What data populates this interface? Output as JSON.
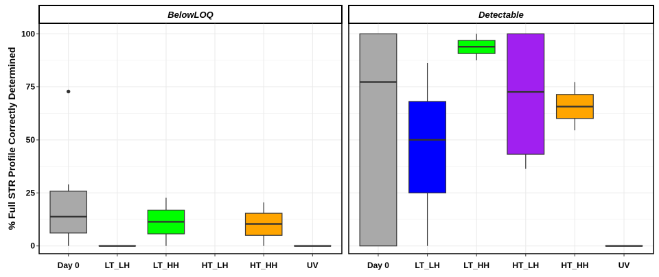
{
  "chart_data": {
    "type": "box",
    "ylabel": "% Full STR Profile Correctly Determined",
    "xlabel": "",
    "ylim": [
      0,
      100
    ],
    "yticks": [
      0,
      25,
      50,
      75,
      100
    ],
    "categories": [
      "Day 0",
      "LT_LH",
      "LT_HH",
      "HT_LH",
      "HT_HH",
      "UV"
    ],
    "colors": {
      "Day 0": "#A9A9A9",
      "LT_LH": "#0000FF",
      "LT_HH": "#00FF00",
      "HT_LH": "#A020F0",
      "HT_HH": "#FFA500",
      "UV": "#A9A9A9"
    },
    "grid": true,
    "legend": "none",
    "panels": [
      {
        "title": "BelowLOQ",
        "boxes": [
          {
            "category": "Day 0",
            "min": 0,
            "q1": 6.1,
            "median": 13.8,
            "q3": 25.8,
            "max": 29,
            "outliers": [
              72.8
            ]
          },
          {
            "category": "LT_LH",
            "min": 0,
            "q1": 0,
            "median": 0,
            "q3": 0,
            "max": 0,
            "outliers": []
          },
          {
            "category": "LT_HH",
            "min": 0,
            "q1": 5.7,
            "median": 11.4,
            "q3": 16.9,
            "max": 22.7,
            "outliers": []
          },
          {
            "category": "HT_HH",
            "min": 0,
            "q1": 5.0,
            "median": 10.4,
            "q3": 15.4,
            "max": 20.5,
            "outliers": []
          },
          {
            "category": "UV",
            "min": 0,
            "q1": 0,
            "median": 0,
            "q3": 0,
            "max": 0,
            "outliers": []
          }
        ]
      },
      {
        "title": "Detectable",
        "boxes": [
          {
            "category": "Day 0",
            "min": 0,
            "q1": 0,
            "median": 77.3,
            "q3": 100,
            "max": 100,
            "outliers": []
          },
          {
            "category": "LT_LH",
            "min": 0,
            "q1": 25.0,
            "median": 50.0,
            "q3": 68.1,
            "max": 86.2,
            "outliers": []
          },
          {
            "category": "LT_HH",
            "min": 87.5,
            "q1": 90.7,
            "median": 93.9,
            "q3": 96.9,
            "max": 100,
            "outliers": []
          },
          {
            "category": "HT_LH",
            "min": 36.4,
            "q1": 43.2,
            "median": 72.6,
            "q3": 100,
            "max": 100,
            "outliers": []
          },
          {
            "category": "HT_HH",
            "min": 54.5,
            "q1": 60.1,
            "median": 65.7,
            "q3": 71.4,
            "max": 77.2,
            "outliers": []
          },
          {
            "category": "UV",
            "min": 0,
            "q1": 0,
            "median": 0,
            "q3": 0,
            "max": 0,
            "outliers": []
          }
        ]
      }
    ]
  }
}
